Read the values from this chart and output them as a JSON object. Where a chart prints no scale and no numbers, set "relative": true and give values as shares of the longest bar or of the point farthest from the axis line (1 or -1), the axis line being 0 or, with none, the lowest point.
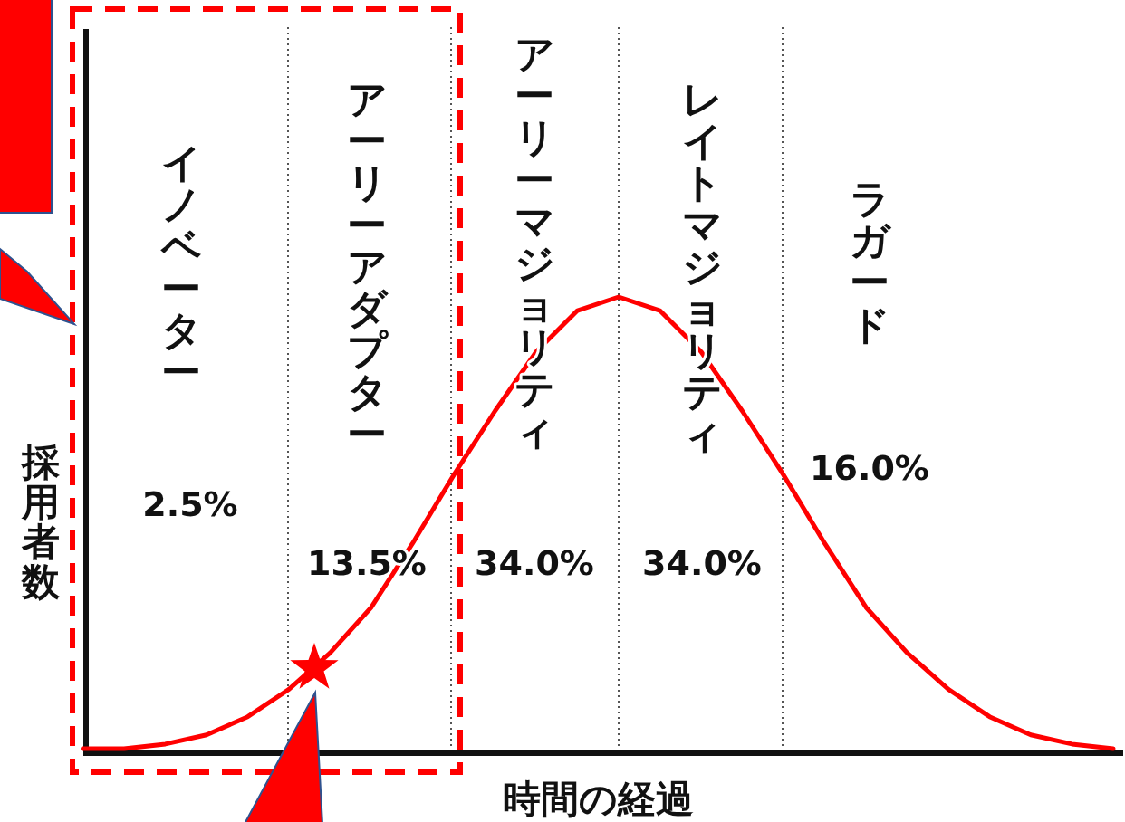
{
  "chart_data": {
    "type": "line",
    "relative": true,
    "xlabel": "時間の経過",
    "ylabel": "採用者数",
    "categories": [
      null,
      null,
      null,
      null,
      null,
      null,
      null,
      null,
      null,
      null,
      null,
      null,
      null,
      null,
      null,
      null,
      null,
      null,
      null,
      null,
      null,
      null,
      null,
      null,
      null,
      null
    ],
    "series": [
      {
        "color": "#ff0000",
        "marker": "none",
        "line_style": "solid",
        "values": [
          0.01,
          0.01,
          0.02,
          0.04,
          0.08,
          0.14,
          0.22,
          0.32,
          0.46,
          0.61,
          0.75,
          0.88,
          0.97,
          1,
          0.97,
          0.88,
          0.75,
          0.61,
          0.46,
          0.32,
          0.22,
          0.14,
          0.08,
          0.04,
          0.02,
          0.01
        ]
      }
    ],
    "grid": "x",
    "annotations": [
      "イノベーター",
      "2.5%",
      "アーリーアダプター",
      "13.5%",
      "アーリーマジョリティ",
      "34.0%",
      "レイトマジョリティ",
      "34.0%",
      "ラガード",
      "16.0%"
    ]
  }
}
